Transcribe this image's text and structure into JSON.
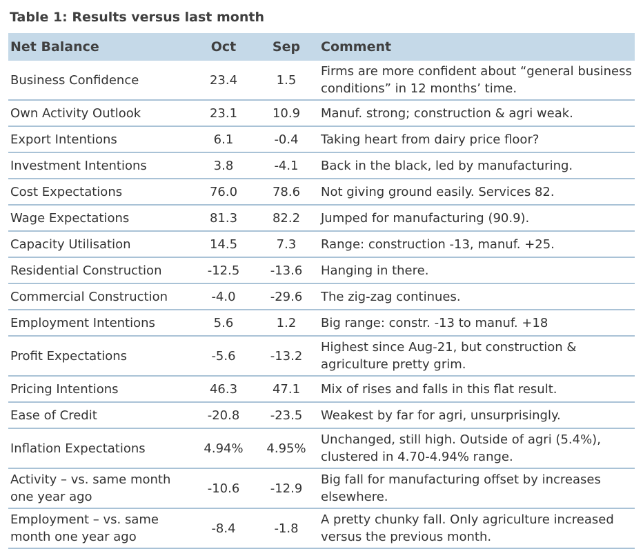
{
  "title": "Table 1: Results versus last month",
  "table": {
    "header": [
      "Net Balance",
      "Oct",
      "Sep",
      "Comment"
    ],
    "rows": [
      [
        "Business Confidence",
        "23.4",
        "1.5",
        "Firms are more confident about “general business conditions” in 12 months’ time."
      ],
      [
        "Own Activity Outlook",
        "23.1",
        "10.9",
        "Manuf. strong; construction & agri weak."
      ],
      [
        "Export Intentions",
        "6.1",
        "-0.4",
        "Taking heart from dairy price floor?"
      ],
      [
        "Investment Intentions",
        "3.8",
        "-4.1",
        "Back in the black, led by manufacturing."
      ],
      [
        "Cost Expectations",
        "76.0",
        "78.6",
        "Not giving ground easily. Services 82."
      ],
      [
        "Wage Expectations",
        "81.3",
        "82.2",
        "Jumped for manufacturing (90.9)."
      ],
      [
        "Capacity Utilisation",
        "14.5",
        "7.3",
        "Range: construction -13, manuf. +25."
      ],
      [
        "Residential Construction",
        "-12.5",
        "-13.6",
        "Hanging in there."
      ],
      [
        "Commercial Construction",
        "-4.0",
        "-29.6",
        "The zig-zag continues."
      ],
      [
        "Employment Intentions",
        "5.6",
        "1.2",
        "Big range: constr. -13 to manuf. +18"
      ],
      [
        "Profit Expectations",
        "-5.6",
        "-13.2",
        "Highest since Aug-21, but construction & agriculture pretty grim."
      ],
      [
        "Pricing Intentions",
        "46.3",
        "47.1",
        "Mix of rises and falls in this flat result."
      ],
      [
        "Ease of Credit",
        "-20.8",
        "-23.5",
        "Weakest by far for agri, unsurprisingly."
      ],
      [
        "Inflation Expectations",
        "4.94%",
        "4.95%",
        "Unchanged, still high. Outside of agri (5.4%), clustered in 4.70-4.94% range."
      ],
      [
        "Activity – vs. same month one year ago",
        "-10.6",
        "-12.9",
        "Big fall for manufacturing offset by increases elsewhere."
      ],
      [
        "Employment – vs. same month one year ago",
        "-8.4",
        "-1.8",
        "A pretty chunky fall. Only agriculture increased versus the previous month."
      ]
    ]
  }
}
